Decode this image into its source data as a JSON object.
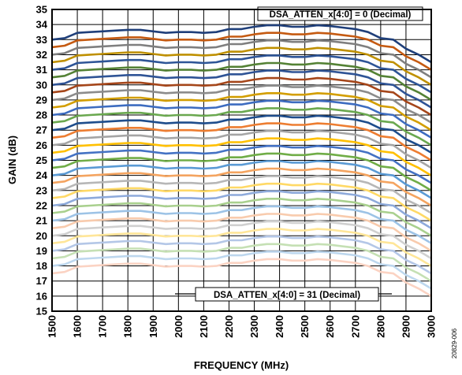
{
  "figure_id": "20829-006",
  "chart_data": {
    "type": "line",
    "title": "",
    "xlabel": "FREQUENCY (MHz)",
    "ylabel": "GAIN (dB)",
    "xlim": [
      1500,
      3000
    ],
    "ylim": [
      15,
      35
    ],
    "x_ticks": [
      1500,
      1600,
      1700,
      1800,
      1900,
      2000,
      2100,
      2200,
      2300,
      2400,
      2500,
      2600,
      2700,
      2800,
      2900,
      3000
    ],
    "y_ticks": [
      15,
      16,
      17,
      18,
      19,
      20,
      21,
      22,
      23,
      24,
      25,
      26,
      27,
      28,
      29,
      30,
      31,
      32,
      33,
      34,
      35
    ],
    "grid": true,
    "annotations": [
      {
        "text": "DSA_ATTEN_x[4:0] = 0 (Decimal)",
        "near_series": 0
      },
      {
        "text": "DSA_ATTEN_x[4:0] = 31 (Decimal)",
        "near_series": 31
      }
    ],
    "x": [
      1500,
      1550,
      1600,
      1650,
      1700,
      1750,
      1800,
      1850,
      1900,
      1950,
      2000,
      2050,
      2100,
      2150,
      2200,
      2250,
      2300,
      2350,
      2400,
      2450,
      2500,
      2550,
      2600,
      2650,
      2700,
      2750,
      2800,
      2850,
      2900,
      2950,
      3000
    ],
    "reference_curve": [
      33.0,
      33.1,
      33.45,
      33.5,
      33.55,
      33.6,
      33.65,
      33.65,
      33.55,
      33.45,
      33.5,
      33.5,
      33.45,
      33.5,
      33.7,
      33.7,
      33.85,
      33.95,
      33.95,
      33.85,
      33.85,
      33.95,
      33.9,
      33.8,
      33.7,
      33.5,
      33.1,
      33.0,
      32.4,
      32.0,
      31.5
    ],
    "step_db": 0.5,
    "series": [
      {
        "attenuation_code": 0,
        "color": "#1f3f7a"
      },
      {
        "attenuation_code": 1,
        "color": "#c55a11"
      },
      {
        "attenuation_code": 2,
        "color": "#7f7f7f"
      },
      {
        "attenuation_code": 3,
        "color": "#bf9000"
      },
      {
        "attenuation_code": 4,
        "color": "#2e5597"
      },
      {
        "attenuation_code": 5,
        "color": "#548235"
      },
      {
        "attenuation_code": 6,
        "color": "#2f5496"
      },
      {
        "attenuation_code": 7,
        "color": "#a5461a"
      },
      {
        "attenuation_code": 8,
        "color": "#8c8c8c"
      },
      {
        "attenuation_code": 9,
        "color": "#d39e00"
      },
      {
        "attenuation_code": 10,
        "color": "#3d6cc0"
      },
      {
        "attenuation_code": 11,
        "color": "#6aa84f"
      },
      {
        "attenuation_code": 12,
        "color": "#1e4d8c"
      },
      {
        "attenuation_code": 13,
        "color": "#ed7d31"
      },
      {
        "attenuation_code": 14,
        "color": "#a5a5a5"
      },
      {
        "attenuation_code": 15,
        "color": "#ffc000"
      },
      {
        "attenuation_code": 16,
        "color": "#4472c4"
      },
      {
        "attenuation_code": 17,
        "color": "#70ad47"
      },
      {
        "attenuation_code": 18,
        "color": "#5b9bd5"
      },
      {
        "attenuation_code": 19,
        "color": "#f4a460"
      },
      {
        "attenuation_code": 20,
        "color": "#b7b7b7"
      },
      {
        "attenuation_code": 21,
        "color": "#ffd966"
      },
      {
        "attenuation_code": 22,
        "color": "#8eaadb"
      },
      {
        "attenuation_code": 23,
        "color": "#a9d08e"
      },
      {
        "attenuation_code": 24,
        "color": "#9dc3e6"
      },
      {
        "attenuation_code": 25,
        "color": "#f8cbad"
      },
      {
        "attenuation_code": 26,
        "color": "#d0d0d0"
      },
      {
        "attenuation_code": 27,
        "color": "#ffe699"
      },
      {
        "attenuation_code": 28,
        "color": "#b4c7e7"
      },
      {
        "attenuation_code": 29,
        "color": "#c5e0b4"
      },
      {
        "attenuation_code": 30,
        "color": "#bdd7ee"
      },
      {
        "attenuation_code": 31,
        "color": "#fbd3c3"
      }
    ]
  }
}
